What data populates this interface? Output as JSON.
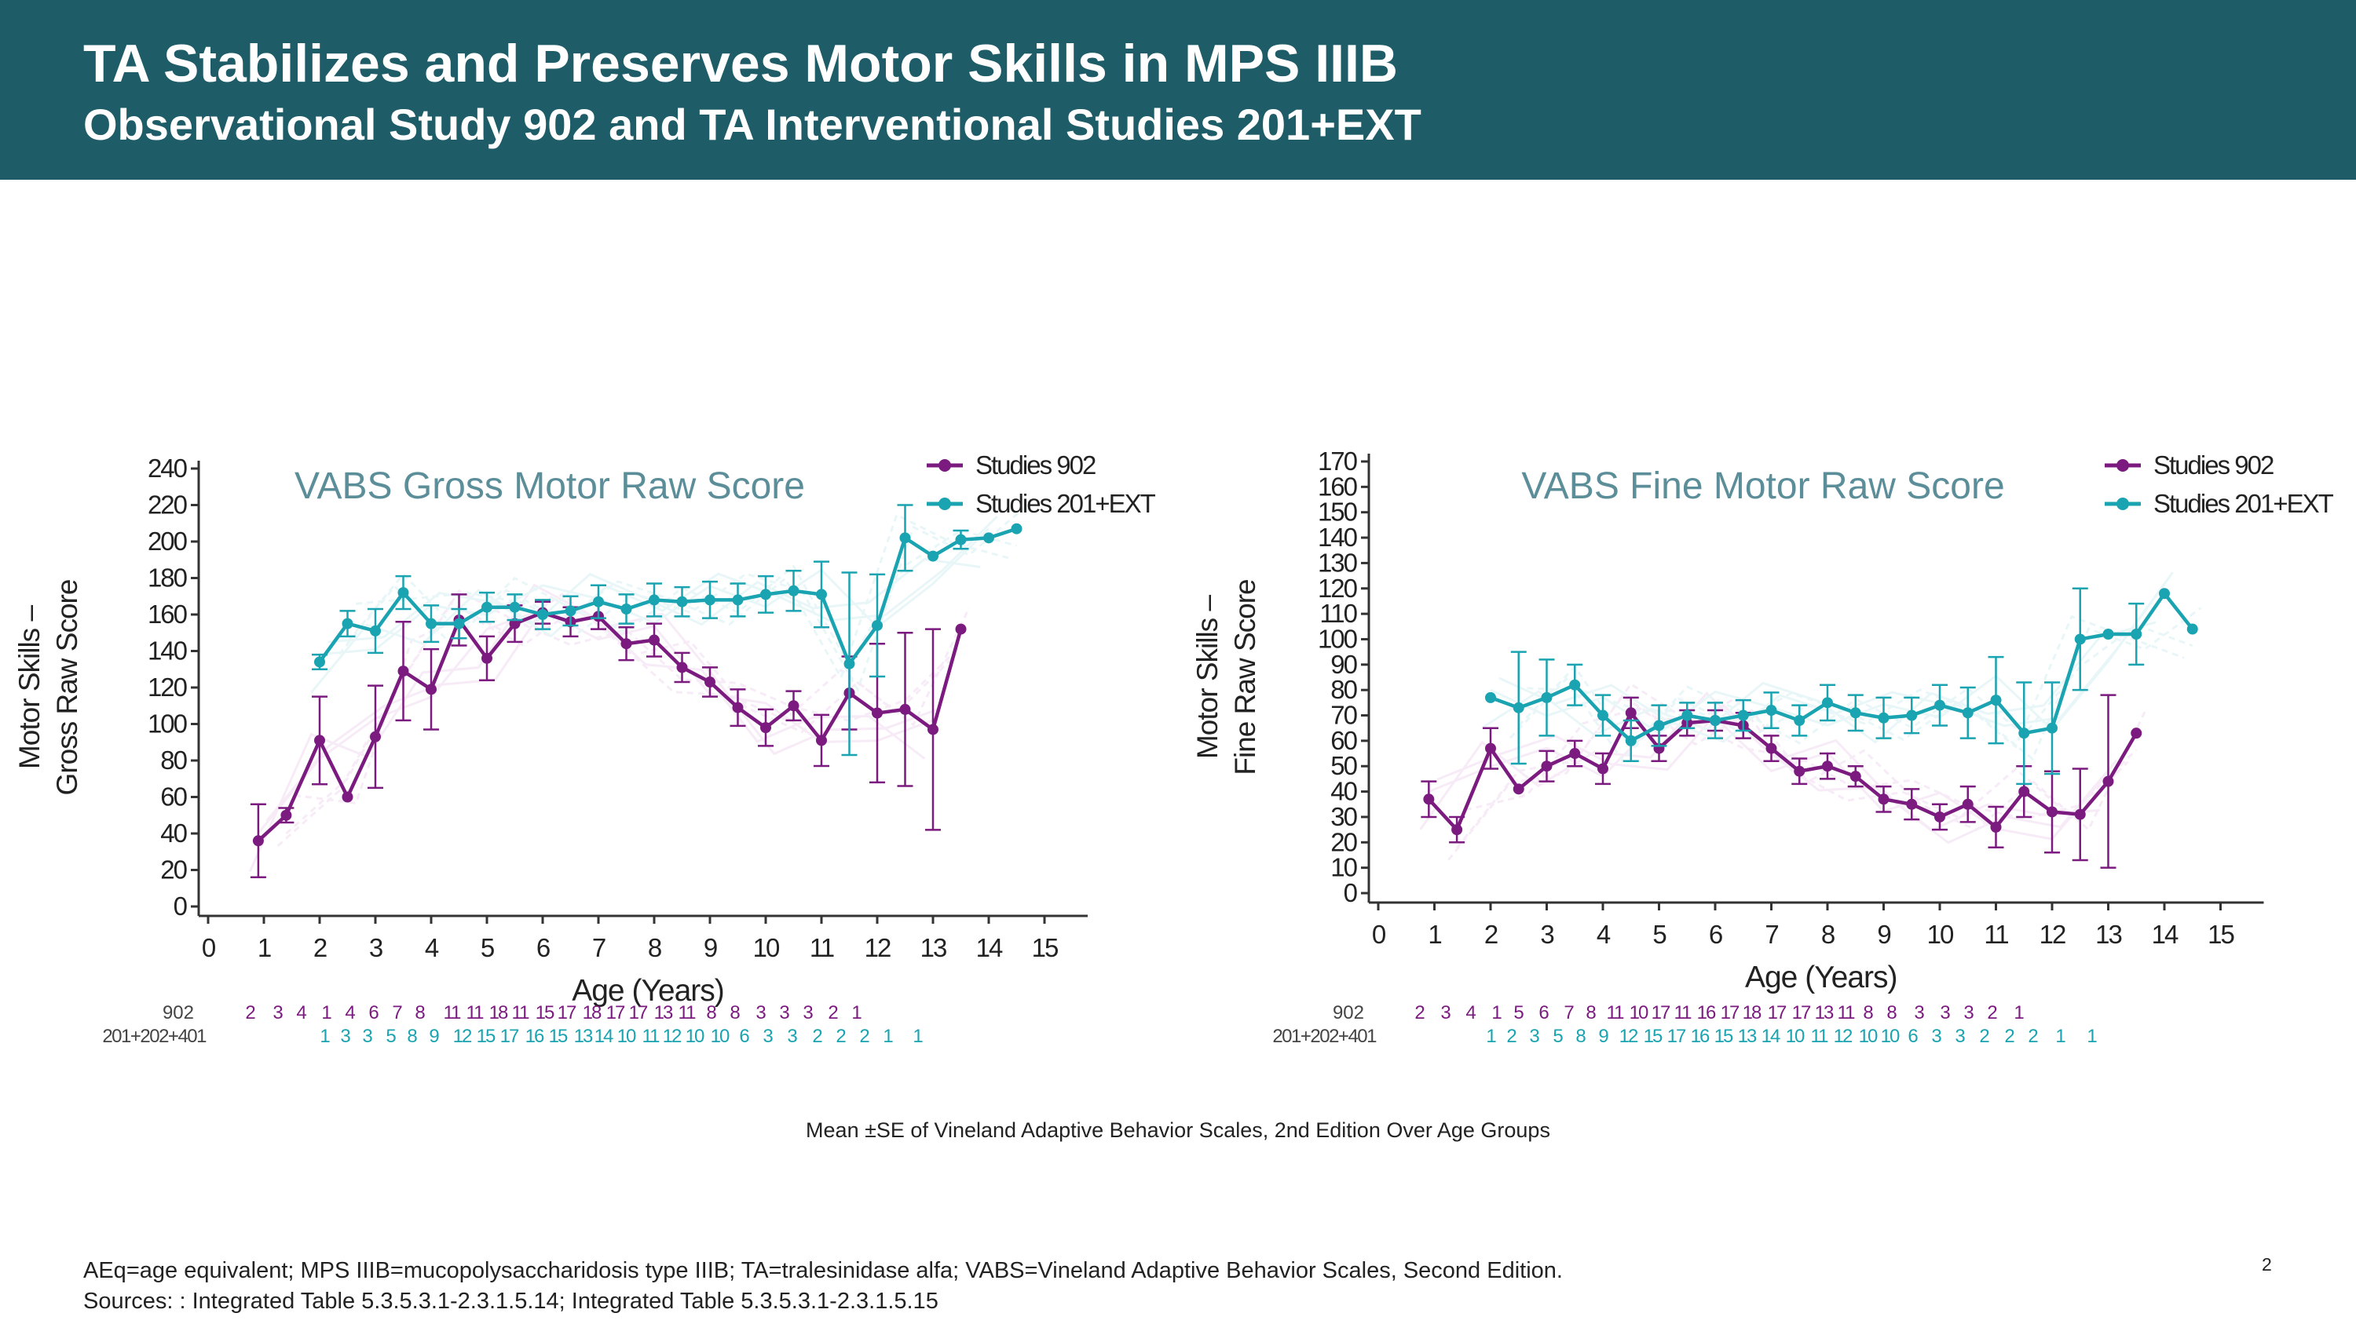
{
  "header": {
    "title": "TA Stabilizes and Preserves Motor Skills in MPS IIIB",
    "subtitle": "Observational Study 902 and TA Interventional Studies 201+EXT"
  },
  "colors": {
    "header_bg": "#1e5c68",
    "series_902": "#7b1a7f",
    "series_201": "#1aa3b0",
    "panel_title": "#5b8e99"
  },
  "chart_data": [
    {
      "type": "line",
      "title": "VABS Gross Motor Raw Score",
      "xlabel": "Age (Years)",
      "ylabel_lines": [
        "Motor Skills –",
        "Gross Raw Score"
      ],
      "xlim": [
        0,
        15
      ],
      "ylim": [
        0,
        240
      ],
      "xticks": [
        "0",
        "1",
        "2",
        "3",
        "4",
        "5",
        "6",
        "7",
        "8",
        "9",
        "10",
        "11",
        "12",
        "13",
        "14",
        "15"
      ],
      "yticks": [
        "0",
        "20",
        "40",
        "60",
        "80",
        "100",
        "120",
        "140",
        "160",
        "180",
        "200",
        "220",
        "240"
      ],
      "legend_position": "top-right",
      "series": [
        {
          "name": "Studies 902",
          "color": "#7b1a7f",
          "x": [
            0.9,
            1.4,
            2.0,
            2.5,
            3.0,
            3.5,
            4.0,
            4.5,
            5.0,
            5.5,
            6.0,
            6.5,
            7.0,
            7.5,
            8.0,
            8.5,
            9.0,
            9.5,
            10.0,
            10.5,
            11.0,
            11.5,
            12.0,
            12.5,
            13.0,
            13.5
          ],
          "y": [
            36,
            50,
            91,
            60,
            93,
            129,
            119,
            157,
            136,
            155,
            161,
            156,
            159,
            144,
            146,
            131,
            123,
            109,
            98,
            110,
            91,
            117,
            106,
            108,
            97,
            152
          ],
          "err": [
            20,
            4,
            24,
            0,
            28,
            27,
            22,
            14,
            12,
            10,
            6,
            8,
            7,
            9,
            9,
            8,
            8,
            10,
            10,
            8,
            14,
            20,
            38,
            42,
            55,
            0
          ]
        },
        {
          "name": "Studies 201+EXT",
          "color": "#1aa3b0",
          "x": [
            2.0,
            2.5,
            3.0,
            3.5,
            4.0,
            4.5,
            5.0,
            5.5,
            6.0,
            6.5,
            7.0,
            7.5,
            8.0,
            8.5,
            9.0,
            9.5,
            10.0,
            10.5,
            11.0,
            11.5,
            12.0,
            12.5,
            13.0,
            13.5,
            14.0,
            14.5
          ],
          "y": [
            134,
            155,
            151,
            172,
            155,
            155,
            164,
            164,
            160,
            162,
            167,
            163,
            168,
            167,
            168,
            168,
            171,
            173,
            171,
            133,
            154,
            202,
            192,
            201,
            202,
            207
          ],
          "err": [
            4,
            7,
            12,
            9,
            10,
            8,
            8,
            7,
            8,
            8,
            9,
            8,
            9,
            8,
            10,
            9,
            10,
            11,
            18,
            50,
            28,
            18,
            0,
            5,
            0,
            0
          ]
        }
      ],
      "n_table": {
        "labels": [
          "902",
          "201+202+401"
        ],
        "row_902": [
          "2",
          "3",
          "4",
          "1",
          "4",
          "6",
          "7",
          "8",
          "11",
          "11",
          "18",
          "11",
          "15",
          "17",
          "18",
          "17",
          "17",
          "13",
          "11",
          "8",
          "8",
          "3",
          "3",
          "3",
          "2",
          "1"
        ],
        "row_201": [
          "1",
          "3",
          "3",
          "5",
          "8",
          "9",
          "12",
          "15",
          "17",
          "16",
          "15",
          "13",
          "14",
          "10",
          "11",
          "12",
          "10",
          "10",
          "6",
          "3",
          "3",
          "2",
          "2",
          "2",
          "1",
          "1"
        ]
      }
    },
    {
      "type": "line",
      "title": "VABS Fine Motor Raw Score",
      "xlabel": "Age (Years)",
      "ylabel_lines": [
        "Motor Skills –",
        "Fine Raw Score"
      ],
      "xlim": [
        0,
        15
      ],
      "ylim": [
        0,
        170
      ],
      "xticks": [
        "0",
        "1",
        "2",
        "3",
        "4",
        "5",
        "6",
        "7",
        "8",
        "9",
        "10",
        "11",
        "12",
        "13",
        "14",
        "15"
      ],
      "yticks": [
        "0",
        "10",
        "20",
        "30",
        "40",
        "50",
        "60",
        "70",
        "80",
        "90",
        "100",
        "110",
        "120",
        "130",
        "140",
        "150",
        "160",
        "170"
      ],
      "legend_position": "top-right",
      "series": [
        {
          "name": "Studies 902",
          "color": "#7b1a7f",
          "x": [
            0.9,
            1.4,
            2.0,
            2.5,
            3.0,
            3.5,
            4.0,
            4.5,
            5.0,
            5.5,
            6.0,
            6.5,
            7.0,
            7.5,
            8.0,
            8.5,
            9.0,
            9.5,
            10.0,
            10.5,
            11.0,
            11.5,
            12.0,
            12.5,
            13.0,
            13.5
          ],
          "y": [
            37,
            25,
            57,
            41,
            50,
            55,
            49,
            71,
            57,
            67,
            68,
            66,
            57,
            48,
            50,
            46,
            37,
            35,
            30,
            35,
            26,
            40,
            32,
            31,
            44,
            63
          ],
          "err": [
            7,
            5,
            8,
            0,
            6,
            5,
            6,
            6,
            5,
            5,
            4,
            5,
            5,
            5,
            5,
            4,
            5,
            6,
            5,
            7,
            8,
            10,
            16,
            18,
            34,
            0
          ]
        },
        {
          "name": "Studies 201+EXT",
          "color": "#1aa3b0",
          "x": [
            2.0,
            2.5,
            3.0,
            3.5,
            4.0,
            4.5,
            5.0,
            5.5,
            6.0,
            6.5,
            7.0,
            7.5,
            8.0,
            8.5,
            9.0,
            9.5,
            10.0,
            10.5,
            11.0,
            11.5,
            12.0,
            12.5,
            13.0,
            13.5,
            14.0,
            14.5
          ],
          "y": [
            77,
            73,
            77,
            82,
            70,
            60,
            66,
            70,
            68,
            70,
            72,
            68,
            75,
            71,
            69,
            70,
            74,
            71,
            76,
            63,
            65,
            100,
            102,
            102,
            118,
            104
          ],
          "err": [
            0,
            22,
            15,
            8,
            8,
            8,
            8,
            5,
            7,
            6,
            7,
            6,
            7,
            7,
            8,
            7,
            8,
            10,
            17,
            20,
            18,
            20,
            0,
            12,
            0,
            0
          ]
        }
      ],
      "n_table": {
        "labels": [
          "902",
          "201+202+401"
        ],
        "row_902": [
          "2",
          "3",
          "4",
          "1",
          "5",
          "6",
          "7",
          "8",
          "11",
          "10",
          "17",
          "11",
          "16",
          "17",
          "18",
          "17",
          "17",
          "13",
          "11",
          "8",
          "8",
          "3",
          "3",
          "3",
          "2",
          "1"
        ],
        "row_201": [
          "1",
          "2",
          "3",
          "5",
          "8",
          "9",
          "12",
          "15",
          "17",
          "16",
          "15",
          "13",
          "14",
          "10",
          "11",
          "12",
          "10",
          "10",
          "6",
          "3",
          "3",
          "2",
          "2",
          "2",
          "1",
          "1"
        ]
      }
    }
  ],
  "caption": "Mean ±SE of Vineland Adaptive Behavior Scales, 2nd Edition Over Age Groups",
  "footnotes": {
    "line1": "AEq=age equivalent; MPS IIIB=mucopolysaccharidosis type IIIB; TA=tralesinidase alfa; VABS=Vineland Adaptive Behavior Scales, Second Edition.",
    "line2": "Sources: : Integrated Table 5.3.5.3.1-2.3.1.5.14; Integrated Table 5.3.5.3.1-2.3.1.5.15"
  },
  "page_number": "2"
}
